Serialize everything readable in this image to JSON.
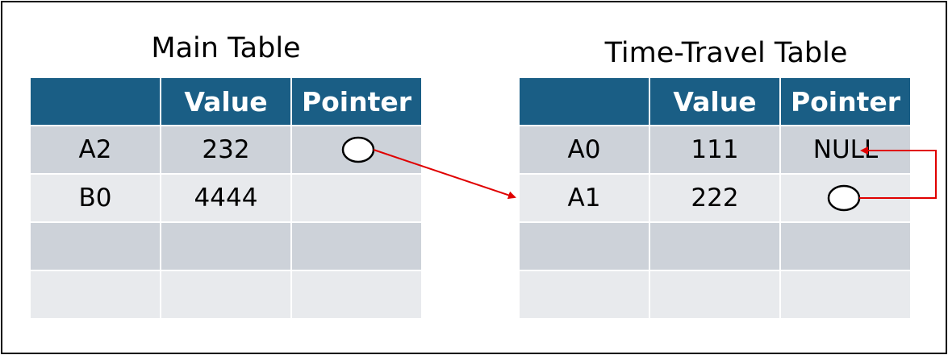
{
  "main_table": {
    "title": "Main Table",
    "headers": [
      "",
      "Value",
      "Pointer"
    ],
    "rows": [
      {
        "key": "A2",
        "value": "232",
        "pointer": ""
      },
      {
        "key": "B0",
        "value": "4444",
        "pointer": ""
      },
      {
        "key": "",
        "value": "",
        "pointer": ""
      },
      {
        "key": "",
        "value": "",
        "pointer": ""
      }
    ]
  },
  "time_travel_table": {
    "title": "Time-Travel Table",
    "headers": [
      "",
      "Value",
      "Pointer"
    ],
    "rows": [
      {
        "key": "A0",
        "value": "111",
        "pointer": "NULL"
      },
      {
        "key": "A1",
        "value": "222",
        "pointer": ""
      },
      {
        "key": "",
        "value": "",
        "pointer": ""
      },
      {
        "key": "",
        "value": "",
        "pointer": ""
      }
    ]
  },
  "colors": {
    "header_bg": "#1a5e85",
    "row_dark": "#cdd2d9",
    "row_light": "#e8eaed",
    "arrow": "#e00000"
  }
}
